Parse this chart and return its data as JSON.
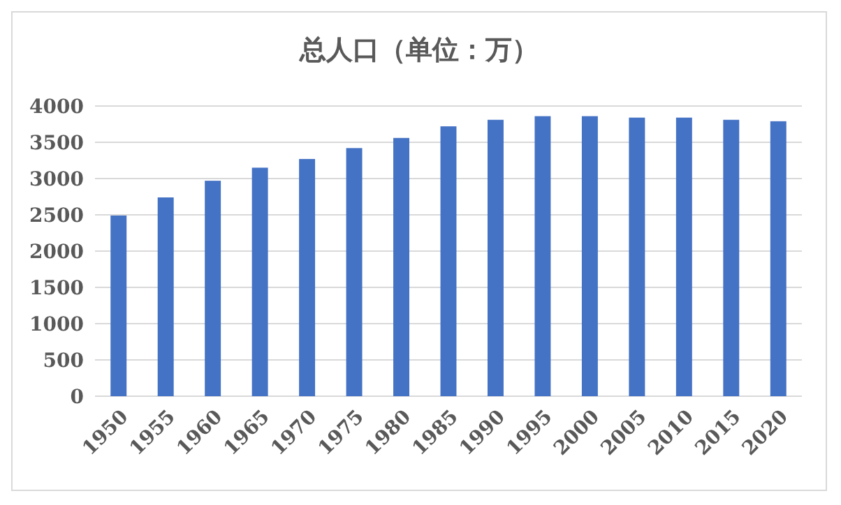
{
  "chart_data": {
    "type": "bar",
    "title": "总人口（单位：万）",
    "categories": [
      "1950",
      "1955",
      "1960",
      "1965",
      "1970",
      "1975",
      "1980",
      "1985",
      "1990",
      "1995",
      "2000",
      "2005",
      "2010",
      "2015",
      "2020"
    ],
    "values": [
      2490,
      2740,
      2970,
      3150,
      3270,
      3420,
      3560,
      3720,
      3810,
      3860,
      3860,
      3840,
      3840,
      3810,
      3790
    ],
    "color": "#4472c4",
    "ylim": [
      0,
      4000
    ],
    "yticks": [
      0,
      500,
      1000,
      1500,
      2000,
      2500,
      3000,
      3500,
      4000
    ],
    "grid": "y"
  }
}
